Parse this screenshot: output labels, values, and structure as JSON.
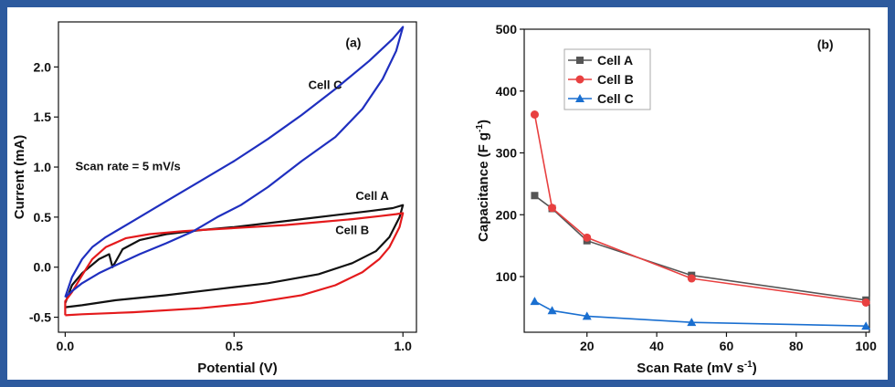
{
  "chart_data": [
    {
      "type": "line",
      "panel_label": "(a)",
      "xlabel": "Potential (V)",
      "ylabel": "Current (mA)",
      "xlim": [
        -0.02,
        1.04
      ],
      "ylim": [
        -0.65,
        2.45
      ],
      "xticks": [
        "0.0",
        "0.5",
        "1.0"
      ],
      "yticks": [
        "-0.5",
        "0.0",
        "0.5",
        "1.0",
        "1.5",
        "2.0"
      ],
      "annotation": "Scan rate = 5 mV/s",
      "series": [
        {
          "name": "Cell A",
          "color": "#111111",
          "points": [
            [
              0.0,
              -0.36
            ],
            [
              0.02,
              -0.18
            ],
            [
              0.05,
              -0.06
            ],
            [
              0.1,
              0.08
            ],
            [
              0.13,
              0.13
            ],
            [
              0.14,
              0.0
            ],
            [
              0.17,
              0.18
            ],
            [
              0.22,
              0.27
            ],
            [
              0.3,
              0.33
            ],
            [
              0.4,
              0.37
            ],
            [
              0.5,
              0.4
            ],
            [
              0.6,
              0.44
            ],
            [
              0.7,
              0.48
            ],
            [
              0.8,
              0.52
            ],
            [
              0.9,
              0.56
            ],
            [
              0.97,
              0.59
            ],
            [
              1.0,
              0.62
            ],
            [
              0.99,
              0.5
            ],
            [
              0.96,
              0.3
            ],
            [
              0.92,
              0.16
            ],
            [
              0.85,
              0.04
            ],
            [
              0.75,
              -0.07
            ],
            [
              0.6,
              -0.16
            ],
            [
              0.45,
              -0.22
            ],
            [
              0.3,
              -0.28
            ],
            [
              0.15,
              -0.33
            ],
            [
              0.05,
              -0.38
            ],
            [
              0.0,
              -0.4
            ]
          ]
        },
        {
          "name": "Cell B",
          "color": "#e41a1c",
          "points": [
            [
              0.0,
              -0.48
            ],
            [
              0.0,
              -0.34
            ],
            [
              0.02,
              -0.25
            ],
            [
              0.05,
              -0.08
            ],
            [
              0.08,
              0.08
            ],
            [
              0.12,
              0.2
            ],
            [
              0.18,
              0.29
            ],
            [
              0.25,
              0.33
            ],
            [
              0.35,
              0.36
            ],
            [
              0.45,
              0.38
            ],
            [
              0.55,
              0.4
            ],
            [
              0.65,
              0.42
            ],
            [
              0.75,
              0.45
            ],
            [
              0.85,
              0.48
            ],
            [
              0.93,
              0.51
            ],
            [
              0.98,
              0.53
            ],
            [
              1.0,
              0.54
            ],
            [
              0.99,
              0.4
            ],
            [
              0.96,
              0.2
            ],
            [
              0.93,
              0.08
            ],
            [
              0.88,
              -0.05
            ],
            [
              0.8,
              -0.18
            ],
            [
              0.7,
              -0.28
            ],
            [
              0.55,
              -0.36
            ],
            [
              0.4,
              -0.41
            ],
            [
              0.2,
              -0.45
            ],
            [
              0.05,
              -0.47
            ],
            [
              0.0,
              -0.48
            ]
          ]
        },
        {
          "name": "Cell C",
          "color": "#1f2fbf",
          "points": [
            [
              0.0,
              -0.3
            ],
            [
              0.02,
              -0.1
            ],
            [
              0.05,
              0.08
            ],
            [
              0.08,
              0.2
            ],
            [
              0.12,
              0.3
            ],
            [
              0.2,
              0.46
            ],
            [
              0.3,
              0.66
            ],
            [
              0.4,
              0.86
            ],
            [
              0.5,
              1.06
            ],
            [
              0.6,
              1.28
            ],
            [
              0.7,
              1.52
            ],
            [
              0.8,
              1.78
            ],
            [
              0.9,
              2.06
            ],
            [
              0.97,
              2.28
            ],
            [
              1.0,
              2.4
            ],
            [
              0.98,
              2.16
            ],
            [
              0.94,
              1.88
            ],
            [
              0.88,
              1.58
            ],
            [
              0.8,
              1.3
            ],
            [
              0.7,
              1.06
            ],
            [
              0.6,
              0.8
            ],
            [
              0.52,
              0.62
            ],
            [
              0.45,
              0.5
            ],
            [
              0.38,
              0.36
            ],
            [
              0.3,
              0.24
            ],
            [
              0.22,
              0.13
            ],
            [
              0.15,
              0.02
            ],
            [
              0.1,
              -0.06
            ],
            [
              0.05,
              -0.16
            ],
            [
              0.02,
              -0.24
            ],
            [
              0.0,
              -0.3
            ]
          ]
        }
      ],
      "labels": [
        {
          "text": "Cell C",
          "x": 0.72,
          "y": 1.78
        },
        {
          "text": "Cell A",
          "x": 0.86,
          "y": 0.67
        },
        {
          "text": "Cell B",
          "x": 0.8,
          "y": 0.33
        }
      ]
    },
    {
      "type": "line",
      "panel_label": "(b)",
      "xlabel": "Scan Rate (mV s",
      "xlabel_sup": "-1",
      "xlabel_end": ")",
      "ylabel": "Capacitance (F g",
      "ylabel_sup": "-1",
      "ylabel_end": ")",
      "xlim": [
        2,
        101
      ],
      "ylim": [
        10,
        500
      ],
      "xticks": [
        "20",
        "40",
        "60",
        "80",
        "100"
      ],
      "yticks": [
        "100",
        "200",
        "300",
        "400",
        "500"
      ],
      "x": [
        5,
        10,
        20,
        50,
        100
      ],
      "series": [
        {
          "name": "Cell A",
          "color": "#555555",
          "marker": "square",
          "values": [
            231,
            210,
            158,
            102,
            62
          ]
        },
        {
          "name": "Cell B",
          "color": "#e84040",
          "marker": "circle",
          "values": [
            362,
            211,
            163,
            97,
            58
          ]
        },
        {
          "name": "Cell C",
          "color": "#1a6fd0",
          "marker": "triangle",
          "values": [
            60,
            45,
            36,
            26,
            20
          ]
        }
      ],
      "legend_position": "top-left"
    }
  ]
}
